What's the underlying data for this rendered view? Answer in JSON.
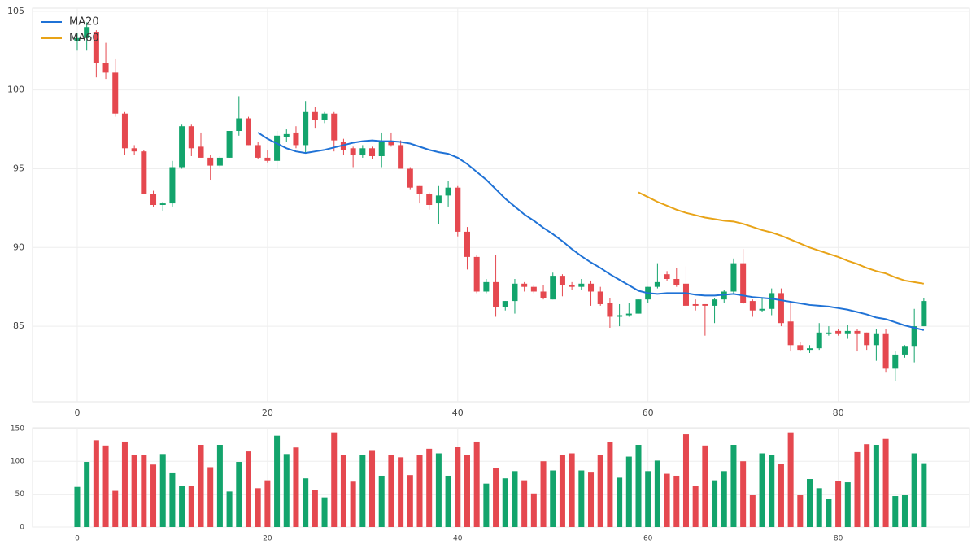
{
  "chart_data": [
    {
      "type": "candlestick",
      "x": [
        0,
        1,
        2,
        3,
        4,
        5,
        6,
        7,
        8,
        9,
        10,
        11,
        12,
        13,
        14,
        15,
        16,
        17,
        18,
        19,
        20,
        21,
        22,
        23,
        24,
        25,
        26,
        27,
        28,
        29,
        30,
        31,
        32,
        33,
        34,
        35,
        36,
        37,
        38,
        39,
        40,
        41,
        42,
        43,
        44,
        45,
        46,
        47,
        48,
        49,
        50,
        51,
        52,
        53,
        54,
        55,
        56,
        57,
        58,
        59,
        60,
        61,
        62,
        63,
        64,
        65,
        66,
        67,
        68,
        69,
        70,
        71,
        72,
        73,
        74,
        75,
        76,
        77,
        78,
        79,
        80,
        81,
        82,
        83,
        84,
        85,
        86,
        87,
        88,
        89
      ],
      "open": [
        103.1,
        103.3,
        103.7,
        101.7,
        101.1,
        98.5,
        96.3,
        96.1,
        93.4,
        92.7,
        92.8,
        95.1,
        97.7,
        96.4,
        95.7,
        95.2,
        95.7,
        97.4,
        98.2,
        96.5,
        95.7,
        95.5,
        97.0,
        97.3,
        96.5,
        98.6,
        98.1,
        98.5,
        96.7,
        96.3,
        95.9,
        96.3,
        95.8,
        96.7,
        96.5,
        95.0,
        93.9,
        93.4,
        92.8,
        93.3,
        93.8,
        91.0,
        89.4,
        87.2,
        87.8,
        86.2,
        86.6,
        87.7,
        87.5,
        87.2,
        86.7,
        88.2,
        87.6,
        87.5,
        87.7,
        87.2,
        86.5,
        85.6,
        85.7,
        85.8,
        86.7,
        87.5,
        88.3,
        88.0,
        87.7,
        86.4,
        86.4,
        86.3,
        86.7,
        87.2,
        89.0,
        86.6,
        86.0,
        86.1,
        87.1,
        85.3,
        83.8,
        83.5,
        83.6,
        84.5,
        84.7,
        84.5,
        84.7,
        84.6,
        83.8,
        84.5,
        82.3,
        83.2,
        83.7,
        85.0
      ],
      "high": [
        103.6,
        104.3,
        103.8,
        103.0,
        102.0,
        98.6,
        96.5,
        96.2,
        93.6,
        92.9,
        95.5,
        97.8,
        97.8,
        97.3,
        95.9,
        95.8,
        97.4,
        99.6,
        98.3,
        96.7,
        96.2,
        97.4,
        97.5,
        97.7,
        99.3,
        98.9,
        98.6,
        98.6,
        96.9,
        96.4,
        96.5,
        96.4,
        97.3,
        97.3,
        96.8,
        95.1,
        93.9,
        93.5,
        93.9,
        94.2,
        93.9,
        91.3,
        89.5,
        88.0,
        89.5,
        86.6,
        88.0,
        87.8,
        87.6,
        87.6,
        88.4,
        88.3,
        87.8,
        88.0,
        87.9,
        87.5,
        86.8,
        86.4,
        86.5,
        86.7,
        87.5,
        89.0,
        88.5,
        88.7,
        88.8,
        86.7,
        86.4,
        86.8,
        87.3,
        89.3,
        89.9,
        86.7,
        86.8,
        87.4,
        87.4,
        86.6,
        84.0,
        83.8,
        85.2,
        85.0,
        84.8,
        85.1,
        84.8,
        84.6,
        84.8,
        84.8,
        83.4,
        83.8,
        86.1,
        86.8
      ],
      "low": [
        102.5,
        102.5,
        100.8,
        100.7,
        98.3,
        95.9,
        95.9,
        93.4,
        92.6,
        92.3,
        92.6,
        95.0,
        95.8,
        95.7,
        94.3,
        95.1,
        95.7,
        97.1,
        96.5,
        95.6,
        95.4,
        95.0,
        96.7,
        96.3,
        96.0,
        97.6,
        97.9,
        96.1,
        95.9,
        95.1,
        95.7,
        95.6,
        95.1,
        96.4,
        95.0,
        93.7,
        92.8,
        92.4,
        91.5,
        92.6,
        90.7,
        88.6,
        87.1,
        87.1,
        85.6,
        86.0,
        85.8,
        87.2,
        87.1,
        86.7,
        86.7,
        86.9,
        87.3,
        87.3,
        86.3,
        86.3,
        84.9,
        85.0,
        85.6,
        85.8,
        86.5,
        87.4,
        87.9,
        87.5,
        86.2,
        86.0,
        84.4,
        85.2,
        86.5,
        87.0,
        86.4,
        85.6,
        85.9,
        85.7,
        85.0,
        83.4,
        83.4,
        83.3,
        83.5,
        84.4,
        84.4,
        84.2,
        83.4,
        83.5,
        82.8,
        82.1,
        81.5,
        83.0,
        82.7,
        85.0
      ],
      "close": [
        103.3,
        104.0,
        101.7,
        101.1,
        98.5,
        96.3,
        96.1,
        93.4,
        92.7,
        92.8,
        95.1,
        97.7,
        96.3,
        95.7,
        95.2,
        95.7,
        97.4,
        98.2,
        96.5,
        95.7,
        95.5,
        97.1,
        97.2,
        96.5,
        98.6,
        98.1,
        98.5,
        96.8,
        96.2,
        95.9,
        96.3,
        95.8,
        96.7,
        96.5,
        95.0,
        93.8,
        93.4,
        92.7,
        93.3,
        93.8,
        91.0,
        89.4,
        87.2,
        87.8,
        86.2,
        86.6,
        87.7,
        87.5,
        87.2,
        86.8,
        88.2,
        87.6,
        87.5,
        87.7,
        87.2,
        86.4,
        85.6,
        85.7,
        85.8,
        86.7,
        87.5,
        87.8,
        88.0,
        87.6,
        86.3,
        86.3,
        86.3,
        86.7,
        87.2,
        89.0,
        86.5,
        86.0,
        86.1,
        87.1,
        85.2,
        83.8,
        83.5,
        83.6,
        84.6,
        84.6,
        84.5,
        84.7,
        84.5,
        83.8,
        84.5,
        82.3,
        83.2,
        83.7,
        85.0,
        86.6
      ],
      "up_color": "#13a46c",
      "down_color": "#e5484f",
      "series": [
        {
          "name": "MA20",
          "color": "#1f72d6",
          "values": [
            null,
            null,
            null,
            null,
            null,
            null,
            null,
            null,
            null,
            null,
            null,
            null,
            null,
            null,
            null,
            null,
            null,
            null,
            null,
            97.3,
            96.9,
            96.6,
            96.3,
            96.1,
            96.0,
            96.1,
            96.2,
            96.35,
            96.5,
            96.65,
            96.75,
            96.8,
            96.75,
            96.75,
            96.7,
            96.6,
            96.4,
            96.2,
            96.05,
            95.95,
            95.7,
            95.3,
            94.8,
            94.3,
            93.7,
            93.1,
            92.6,
            92.1,
            91.7,
            91.25,
            90.85,
            90.4,
            89.9,
            89.45,
            89.05,
            88.7,
            88.3,
            87.95,
            87.6,
            87.25,
            87.1,
            87.05,
            87.1,
            87.1,
            87.1,
            87.0,
            86.95,
            86.95,
            87.0,
            87.05,
            86.95,
            86.85,
            86.8,
            86.75,
            86.65,
            86.55,
            86.45,
            86.35,
            86.3,
            86.25,
            86.15,
            86.05,
            85.9,
            85.75,
            85.55,
            85.45,
            85.25,
            85.05,
            84.9,
            84.75
          ]
        },
        {
          "name": "MA60",
          "color": "#e8a317",
          "values": [
            null,
            null,
            null,
            null,
            null,
            null,
            null,
            null,
            null,
            null,
            null,
            null,
            null,
            null,
            null,
            null,
            null,
            null,
            null,
            null,
            null,
            null,
            null,
            null,
            null,
            null,
            null,
            null,
            null,
            null,
            null,
            null,
            null,
            null,
            null,
            null,
            null,
            null,
            null,
            null,
            null,
            null,
            null,
            null,
            null,
            null,
            null,
            null,
            null,
            null,
            null,
            null,
            null,
            null,
            null,
            null,
            null,
            null,
            null,
            93.5,
            93.2,
            92.9,
            92.65,
            92.4,
            92.2,
            92.05,
            91.9,
            91.8,
            91.7,
            91.65,
            91.5,
            91.3,
            91.1,
            90.95,
            90.75,
            90.5,
            90.25,
            90.0,
            89.8,
            89.6,
            89.4,
            89.15,
            88.95,
            88.7,
            88.5,
            88.35,
            88.1,
            87.9,
            87.8,
            87.7
          ]
        }
      ],
      "legend": "upper left",
      "grid": true,
      "xlim": [
        -4.7,
        93.8
      ],
      "xticks": [
        0,
        20,
        40,
        60,
        80
      ],
      "ylim": [
        80.2,
        105.2
      ],
      "yticks": [
        85,
        90,
        95,
        100,
        105
      ]
    },
    {
      "type": "bar",
      "x": [
        0,
        1,
        2,
        3,
        4,
        5,
        6,
        7,
        8,
        9,
        10,
        11,
        12,
        13,
        14,
        15,
        16,
        17,
        18,
        19,
        20,
        21,
        22,
        23,
        24,
        25,
        26,
        27,
        28,
        29,
        30,
        31,
        32,
        33,
        34,
        35,
        36,
        37,
        38,
        39,
        40,
        41,
        42,
        43,
        44,
        45,
        46,
        47,
        48,
        49,
        50,
        51,
        52,
        53,
        54,
        55,
        56,
        57,
        58,
        59,
        60,
        61,
        62,
        63,
        64,
        65,
        66,
        67,
        68,
        69,
        70,
        71,
        72,
        73,
        74,
        75,
        76,
        77,
        78,
        79,
        80,
        81,
        82,
        83,
        84,
        85,
        86,
        87,
        88,
        89
      ],
      "values": [
        61,
        99,
        132,
        124,
        55,
        130,
        110,
        110,
        95,
        111,
        83,
        62,
        62,
        125,
        91,
        125,
        54,
        99,
        115,
        59,
        71,
        139,
        111,
        121,
        74,
        56,
        45,
        144,
        109,
        69,
        110,
        117,
        78,
        110,
        106,
        79,
        109,
        119,
        112,
        78,
        122,
        110,
        130,
        66,
        90,
        74,
        85,
        71,
        51,
        100,
        86,
        110,
        112,
        86,
        84,
        109,
        129,
        75,
        107,
        125,
        85,
        101,
        81,
        78,
        141,
        62,
        124,
        71,
        85,
        125,
        100,
        49,
        112,
        110,
        96,
        144,
        49,
        73,
        59,
        43,
        70,
        68,
        114,
        126,
        125,
        134,
        47,
        49,
        112,
        97
      ],
      "grid": true,
      "xlim": [
        -4.7,
        93.8
      ],
      "xticks": [
        0,
        20,
        40,
        60,
        80
      ],
      "ylim": [
        0,
        151
      ],
      "yticks": [
        0,
        50,
        100,
        150
      ]
    }
  ]
}
